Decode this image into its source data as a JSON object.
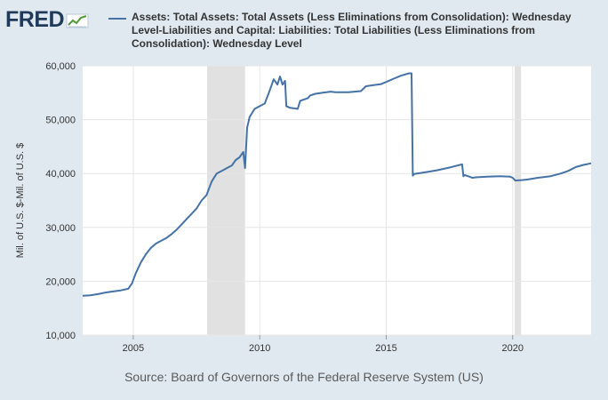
{
  "brand": {
    "logo_text": "FRED",
    "logo_icon": "line-chart-icon"
  },
  "chart_data": {
    "type": "line",
    "title": "",
    "legend_placement": "top",
    "ylabel": "Mil. of U.S. $-Mil. of U.S. $",
    "xlabel": "",
    "xlim": [
      2003.0,
      2023.1
    ],
    "ylim": [
      10000,
      60000
    ],
    "x_ticks": [
      {
        "value": 2005,
        "label": "2005"
      },
      {
        "value": 2010,
        "label": "2010"
      },
      {
        "value": 2015,
        "label": "2015"
      },
      {
        "value": 2020,
        "label": "2020"
      }
    ],
    "y_ticks": [
      {
        "value": 10000,
        "label": "10,000"
      },
      {
        "value": 20000,
        "label": "20,000"
      },
      {
        "value": 30000,
        "label": "30,000"
      },
      {
        "value": 40000,
        "label": "40,000"
      },
      {
        "value": 50000,
        "label": "50,000"
      },
      {
        "value": 60000,
        "label": "60,000"
      }
    ],
    "grid": true,
    "line_color": "#4572a7",
    "recession_color": "#e1e1e1",
    "recessions": [
      [
        2007.92,
        2009.42
      ],
      [
        2020.08,
        2020.33
      ]
    ],
    "series": [
      {
        "name": "Assets: Total Assets: Total Assets (Less Eliminations from Consolidation): Wednesday Level-Liabilities and Capital: Liabilities: Total Liabilities (Less Eliminations from Consolidation): Wednesday Level",
        "x": [
          2003.0,
          2003.3,
          2003.6,
          2003.9,
          2004.2,
          2004.5,
          2004.8,
          2004.95,
          2005.1,
          2005.3,
          2005.5,
          2005.7,
          2005.9,
          2006.1,
          2006.3,
          2006.5,
          2006.7,
          2006.9,
          2007.1,
          2007.3,
          2007.5,
          2007.7,
          2007.9,
          2008.1,
          2008.3,
          2008.5,
          2008.7,
          2008.9,
          2009.05,
          2009.2,
          2009.35,
          2009.42,
          2009.5,
          2009.6,
          2009.8,
          2010.0,
          2010.2,
          2010.4,
          2010.55,
          2010.7,
          2010.8,
          2010.9,
          2011.0,
          2011.05,
          2011.2,
          2011.5,
          2011.6,
          2011.9,
          2012.0,
          2012.2,
          2012.5,
          2012.8,
          2013.0,
          2013.5,
          2014.0,
          2014.2,
          2014.5,
          2014.8,
          2015.0,
          2015.3,
          2015.6,
          2015.9,
          2016.0,
          2016.05,
          2016.1,
          2016.5,
          2017.0,
          2017.5,
          2018.0,
          2018.05,
          2018.1,
          2018.3,
          2018.4,
          2018.6,
          2019.0,
          2019.5,
          2019.9,
          2020.0,
          2020.1,
          2020.4,
          2020.6,
          2021.0,
          2021.5,
          2021.9,
          2022.2,
          2022.5,
          2022.8,
          2023.1
        ],
        "y": [
          17300,
          17400,
          17600,
          17900,
          18100,
          18300,
          18600,
          19600,
          21500,
          23500,
          25000,
          26200,
          27000,
          27500,
          28000,
          28700,
          29500,
          30500,
          31500,
          32500,
          33500,
          35000,
          36000,
          38500,
          40000,
          40500,
          41000,
          41500,
          42500,
          43000,
          44000,
          41000,
          48500,
          50500,
          52000,
          52500,
          53000,
          55500,
          57500,
          56500,
          58000,
          56500,
          57200,
          52500,
          52200,
          52000,
          53500,
          54000,
          54500,
          54800,
          55000,
          55200,
          55100,
          55100,
          55300,
          56200,
          56400,
          56600,
          57000,
          57600,
          58200,
          58600,
          58600,
          39600,
          39900,
          40200,
          40600,
          41100,
          41700,
          39500,
          39700,
          39400,
          39200,
          39300,
          39400,
          39500,
          39400,
          39200,
          38700,
          38800,
          38900,
          39200,
          39500,
          40000,
          40500,
          41200,
          41600,
          41900
        ]
      }
    ]
  },
  "source": "Source: Board of Governors of the Federal Reserve System (US)"
}
